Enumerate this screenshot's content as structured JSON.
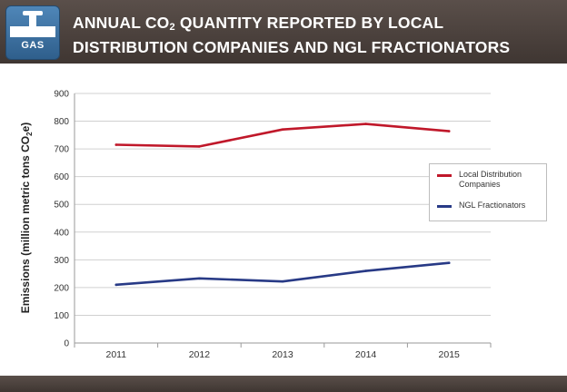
{
  "header": {
    "badge_label": "GAS",
    "title_part1": "Annual CO",
    "title_sub": "2",
    "title_part2": " Quantity Reported by Local Distribution Companies and NGL Fractionators",
    "colors": {
      "bar": "#463c37",
      "badge": "#3c6f9f"
    }
  },
  "chart_data": {
    "type": "line",
    "categories": [
      "2011",
      "2012",
      "2013",
      "2014",
      "2015"
    ],
    "series": [
      {
        "name": "Local Distribution Companies",
        "color": "#c0182a",
        "values": [
          715,
          709,
          770,
          790,
          764
        ]
      },
      {
        "name": "NGL Fractionators",
        "color": "#283a86",
        "values": [
          210,
          233,
          222,
          260,
          289
        ]
      }
    ],
    "ylabel_main": "Emissions (million metric tons CO",
    "ylabel_sub": "2",
    "ylabel_end": "e)",
    "ylim": [
      0,
      900
    ],
    "yticks": [
      "0",
      "100",
      "200",
      "300",
      "400",
      "500",
      "600",
      "700",
      "800",
      "900"
    ],
    "grid": true,
    "legend_position": "right"
  }
}
